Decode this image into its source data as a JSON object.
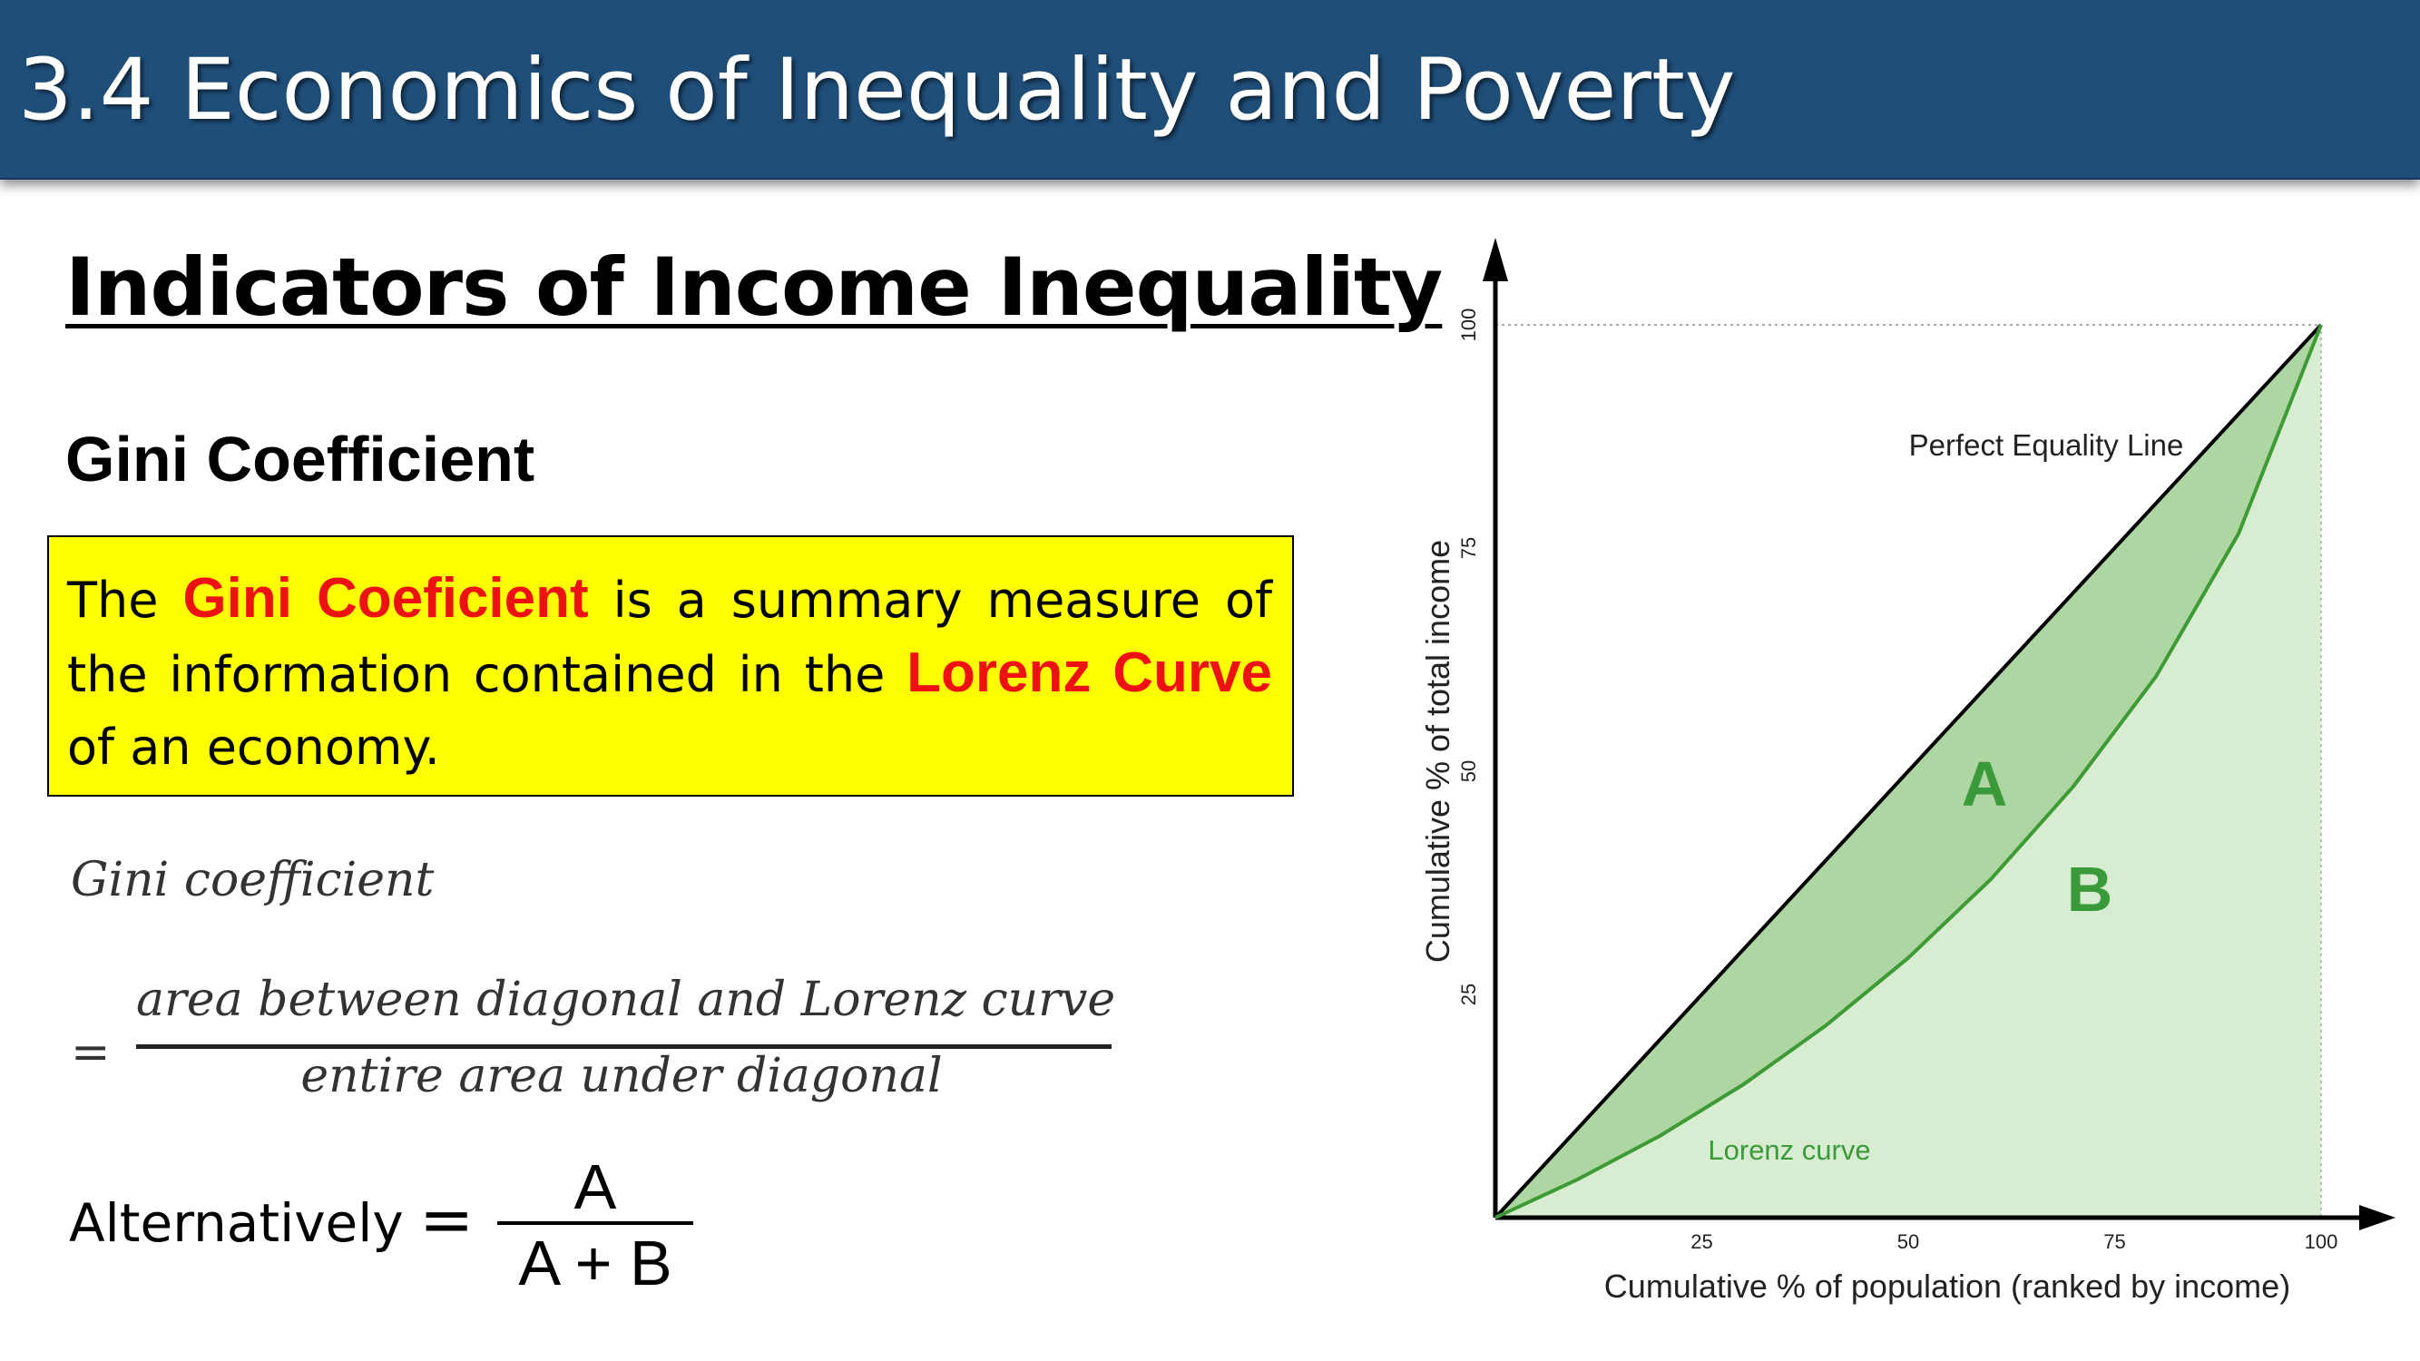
{
  "slide": {
    "title": "3.4 Economics of Inequality and Poverty",
    "heading": "Indicators of Income Inequality",
    "subheading": "Gini Coefficient"
  },
  "definition": {
    "part1": "The ",
    "term1": "Gini Coeficient",
    "part2": " is a summary measure of the information contained in the ",
    "term2": "Lorenz Curve",
    "part3": " of an economy."
  },
  "formula": {
    "label": "Gini coefficient",
    "equals": "=",
    "numerator": "area between diagonal and Lorenz curve",
    "denominator": "entire area under diagonal"
  },
  "alternative": {
    "label": "Alternatively",
    "equals": "=",
    "numerator": "A",
    "denominator": "A + B"
  },
  "colors": {
    "header_bg": "#1f4e79",
    "highlight_box": "#ffff00",
    "term_red": "#ee1111",
    "area_a": "#add6a2",
    "area_b": "#d8ecd2",
    "lorenz_line": "#3d9a35",
    "label_green": "#3a9a3a"
  },
  "chart_data": {
    "type": "line",
    "xlabel": "Cumulative % of population (ranked by income)",
    "ylabel": "Cumulative % of total income",
    "xlim": [
      0,
      100
    ],
    "ylim": [
      0,
      100
    ],
    "x_ticks": [
      "25",
      "50",
      "75",
      "100"
    ],
    "y_ticks": [
      "25",
      "50",
      "75",
      "100"
    ],
    "grid": false,
    "series": [
      {
        "name": "Perfect Equality Line",
        "x": [
          0,
          100
        ],
        "y": [
          0,
          100
        ]
      },
      {
        "name": "Lorenz curve",
        "x": [
          0,
          10,
          20,
          30,
          40,
          50,
          60,
          70,
          80,
          90,
          100
        ],
        "y": [
          0,
          4.3,
          9.2,
          14.9,
          21.5,
          29.1,
          37.9,
          48.3,
          60.6,
          76.6,
          100
        ]
      }
    ],
    "area_labels": [
      "A",
      "B"
    ]
  }
}
